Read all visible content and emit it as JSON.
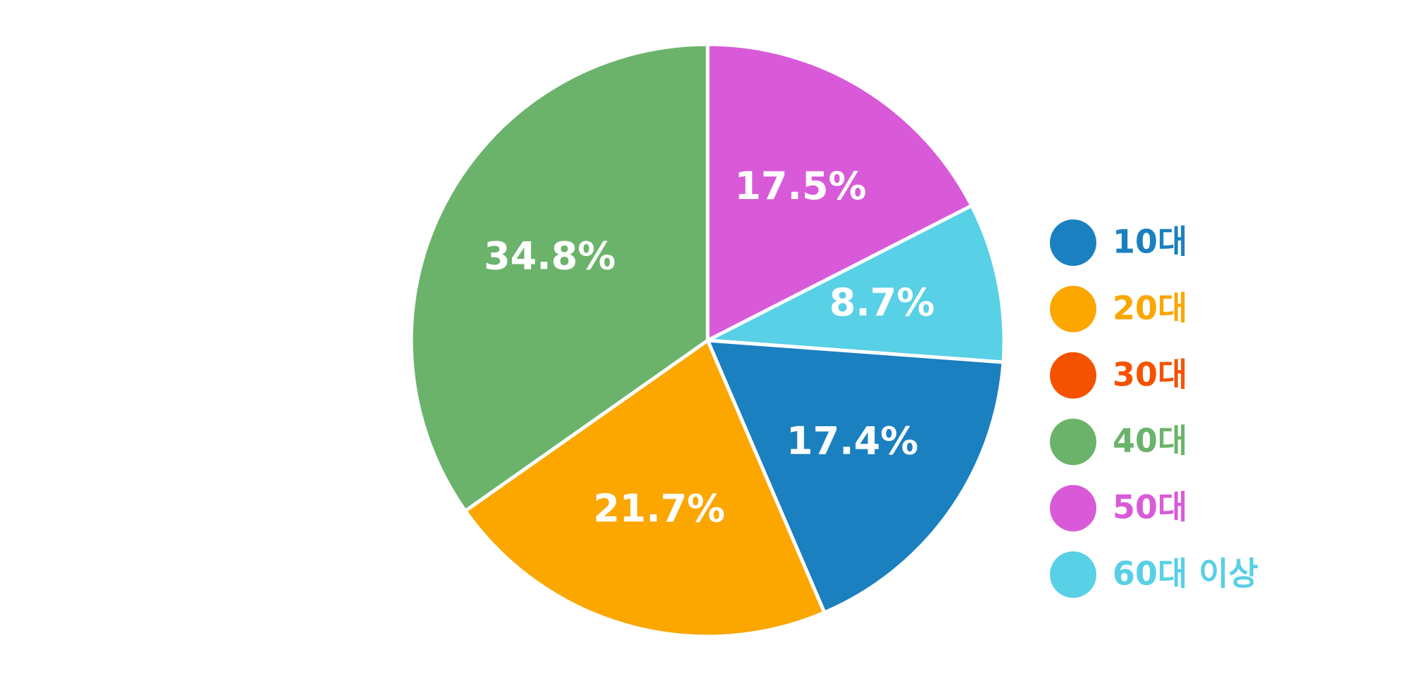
{
  "chart_data": {
    "type": "pie",
    "categories": [
      "10대",
      "20대",
      "30대",
      "40대",
      "50대",
      "60대 이상"
    ],
    "values": [
      17.4,
      21.7,
      0,
      34.8,
      17.5,
      8.7
    ],
    "value_labels": [
      "17.4%",
      "21.7%",
      null,
      "34.8%",
      "17.5%",
      "8.7%"
    ],
    "colors": [
      "#1a80bf",
      "#fca600",
      "#f55200",
      "#6bb36b",
      "#d95ad8",
      "#58d0e5"
    ],
    "legend": "right"
  }
}
